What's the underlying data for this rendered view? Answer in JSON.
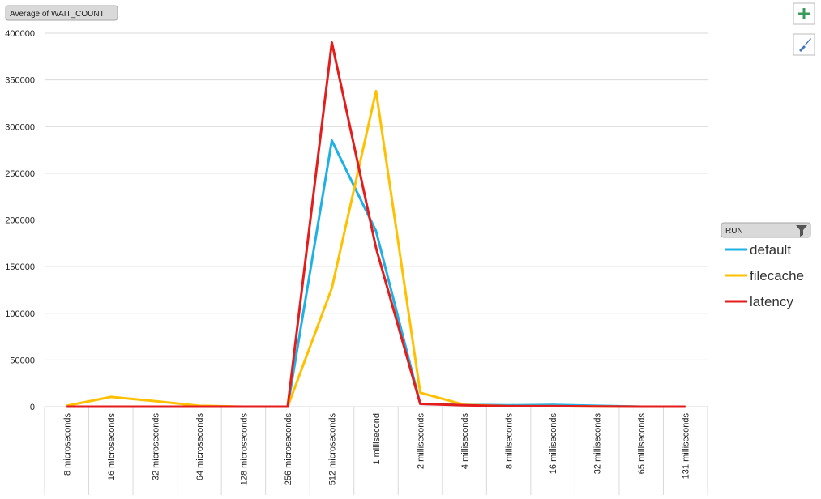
{
  "chart_data": {
    "type": "line",
    "value_field_button": "Average of WAIT_COUNT",
    "legend_title": "RUN",
    "categories": [
      "8 microseconds",
      "16 microseconds",
      "32 microseconds",
      "64 microseconds",
      "128 microseconds",
      "256 microseconds",
      "512 microseconds",
      "1 millisecond",
      "2 milliseconds",
      "4 milliseconds",
      "8 milliseconds",
      "16 milliseconds",
      "32 milliseconds",
      "65 milliseconds",
      "131 milliseconds"
    ],
    "series": [
      {
        "name": "default",
        "color": "#1fb0e6",
        "values": [
          0,
          0,
          0,
          0,
          0,
          0,
          285000,
          188000,
          3000,
          2000,
          1500,
          2000,
          1000,
          0,
          0
        ]
      },
      {
        "name": "filecache",
        "color": "#ffc000",
        "values": [
          1000,
          10500,
          6000,
          1000,
          0,
          0,
          127000,
          338000,
          15000,
          2000,
          500,
          500,
          200,
          0,
          0
        ]
      },
      {
        "name": "latency",
        "color": "#e41c1c",
        "values": [
          0,
          0,
          0,
          0,
          0,
          0,
          390000,
          170000,
          3000,
          1500,
          500,
          500,
          200,
          0,
          0
        ]
      }
    ],
    "ylim": [
      0,
      400000
    ],
    "yticks": [
      0,
      50000,
      100000,
      150000,
      200000,
      250000,
      300000,
      350000,
      400000
    ],
    "grid": true
  }
}
